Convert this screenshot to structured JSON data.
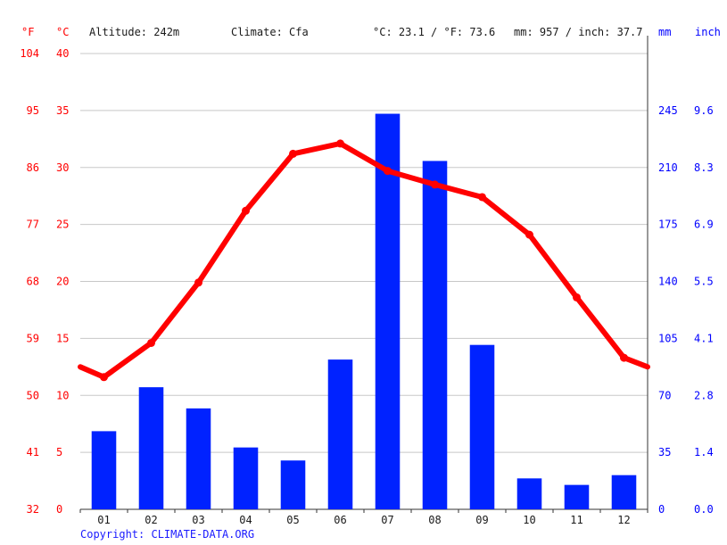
{
  "header": {
    "unit_f": "°F",
    "unit_c": "°C",
    "altitude": "Altitude: 242m",
    "climate": "Climate: Cfa",
    "temp_avg": "°C: 23.1 / °F: 73.6",
    "precip_total": "mm: 957 / inch: 37.7",
    "unit_mm": "mm",
    "unit_inch": "inch"
  },
  "copyright": "Copyright: CLIMATE-DATA.ORG",
  "colors": {
    "temperature": "#ff0000",
    "precipitation": "#0022ff",
    "grid": "#c8c8c8"
  },
  "chart_data": {
    "type": "bar",
    "categories": [
      "01",
      "02",
      "03",
      "04",
      "05",
      "06",
      "07",
      "08",
      "09",
      "10",
      "11",
      "12"
    ],
    "series": [
      {
        "type": "bar",
        "axis": "mm",
        "values": [
          48,
          75,
          62,
          38,
          30,
          92,
          243,
          214,
          101,
          19,
          15,
          21
        ]
      },
      {
        "type": "line",
        "axis": "celsius",
        "values": [
          11.6,
          14.6,
          19.9,
          26.2,
          31.2,
          32.1,
          29.7,
          28.5,
          27.4,
          24.1,
          18.6,
          13.3
        ]
      }
    ],
    "temp_endpoints": {
      "start": 12.5,
      "end": 12.5
    },
    "axes": {
      "fahrenheit": {
        "ticks": [
          "104",
          "95",
          "86",
          "77",
          "68",
          "59",
          "50",
          "41",
          "32"
        ]
      },
      "celsius": {
        "ticks": [
          "40",
          "35",
          "30",
          "25",
          "20",
          "15",
          "10",
          "5",
          "0"
        ],
        "ylim": [
          0,
          40
        ]
      },
      "mm": {
        "ticks": [
          "245",
          "210",
          "175",
          "140",
          "105",
          "70",
          "35",
          "0"
        ],
        "ylim": [
          0,
          280
        ]
      },
      "inch": {
        "ticks": [
          "9.6",
          "8.3",
          "6.9",
          "5.5",
          "4.1",
          "2.8",
          "1.4",
          "0.0"
        ]
      }
    },
    "grid": true
  }
}
